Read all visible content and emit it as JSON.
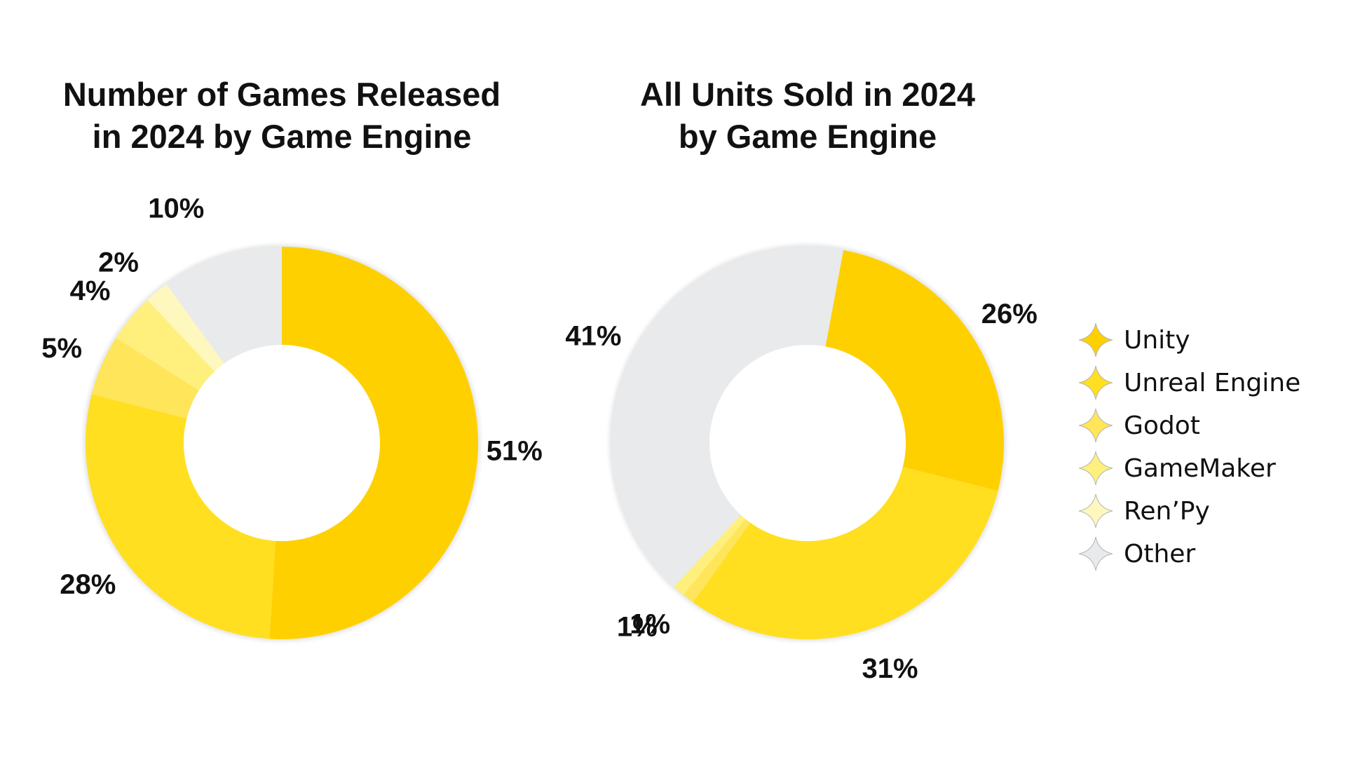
{
  "legend": [
    {
      "label": "Unity",
      "color": "#FFD000",
      "icon": "sparkle-icon"
    },
    {
      "label": "Unreal Engine",
      "color": "#FFDF1F",
      "icon": "sparkle-icon"
    },
    {
      "label": "Godot",
      "color": "#FFE55A",
      "icon": "sparkle-icon"
    },
    {
      "label": "GameMaker",
      "color": "#FFF07E",
      "icon": "sparkle-icon"
    },
    {
      "label": "Ren’Py",
      "color": "#FFF8BE",
      "icon": "sparkle-icon"
    },
    {
      "label": "Other",
      "color": "#E9EAEC",
      "icon": "sparkle-icon"
    }
  ],
  "chart_data": [
    {
      "type": "pie",
      "style": "donut",
      "title": "Number of Games Released in 2024 by Game Engine",
      "title_lines": [
        "Number of Games Released",
        "in 2024 by Game Engine"
      ],
      "unit": "%",
      "categories": [
        "Unity",
        "Unreal Engine",
        "Godot",
        "GameMaker",
        "Ren’Py",
        "Other"
      ],
      "values": [
        51,
        28,
        5,
        4,
        2,
        10
      ],
      "labels": [
        "51%",
        "28%",
        "5%",
        "4%",
        "2%",
        "10%"
      ]
    },
    {
      "type": "pie",
      "style": "donut",
      "title": "All Units Sold in 2024 by Game Engine",
      "title_lines": [
        "All Units Sold in 2024",
        "by Game Engine"
      ],
      "unit": "%",
      "categories": [
        "Unity",
        "Unreal Engine",
        "Godot",
        "GameMaker",
        "Ren’Py",
        "Other"
      ],
      "values": [
        26,
        31,
        1,
        1,
        0,
        41
      ],
      "labels": [
        "26%",
        "31%",
        "1%",
        "1%",
        "",
        "41%"
      ]
    }
  ]
}
